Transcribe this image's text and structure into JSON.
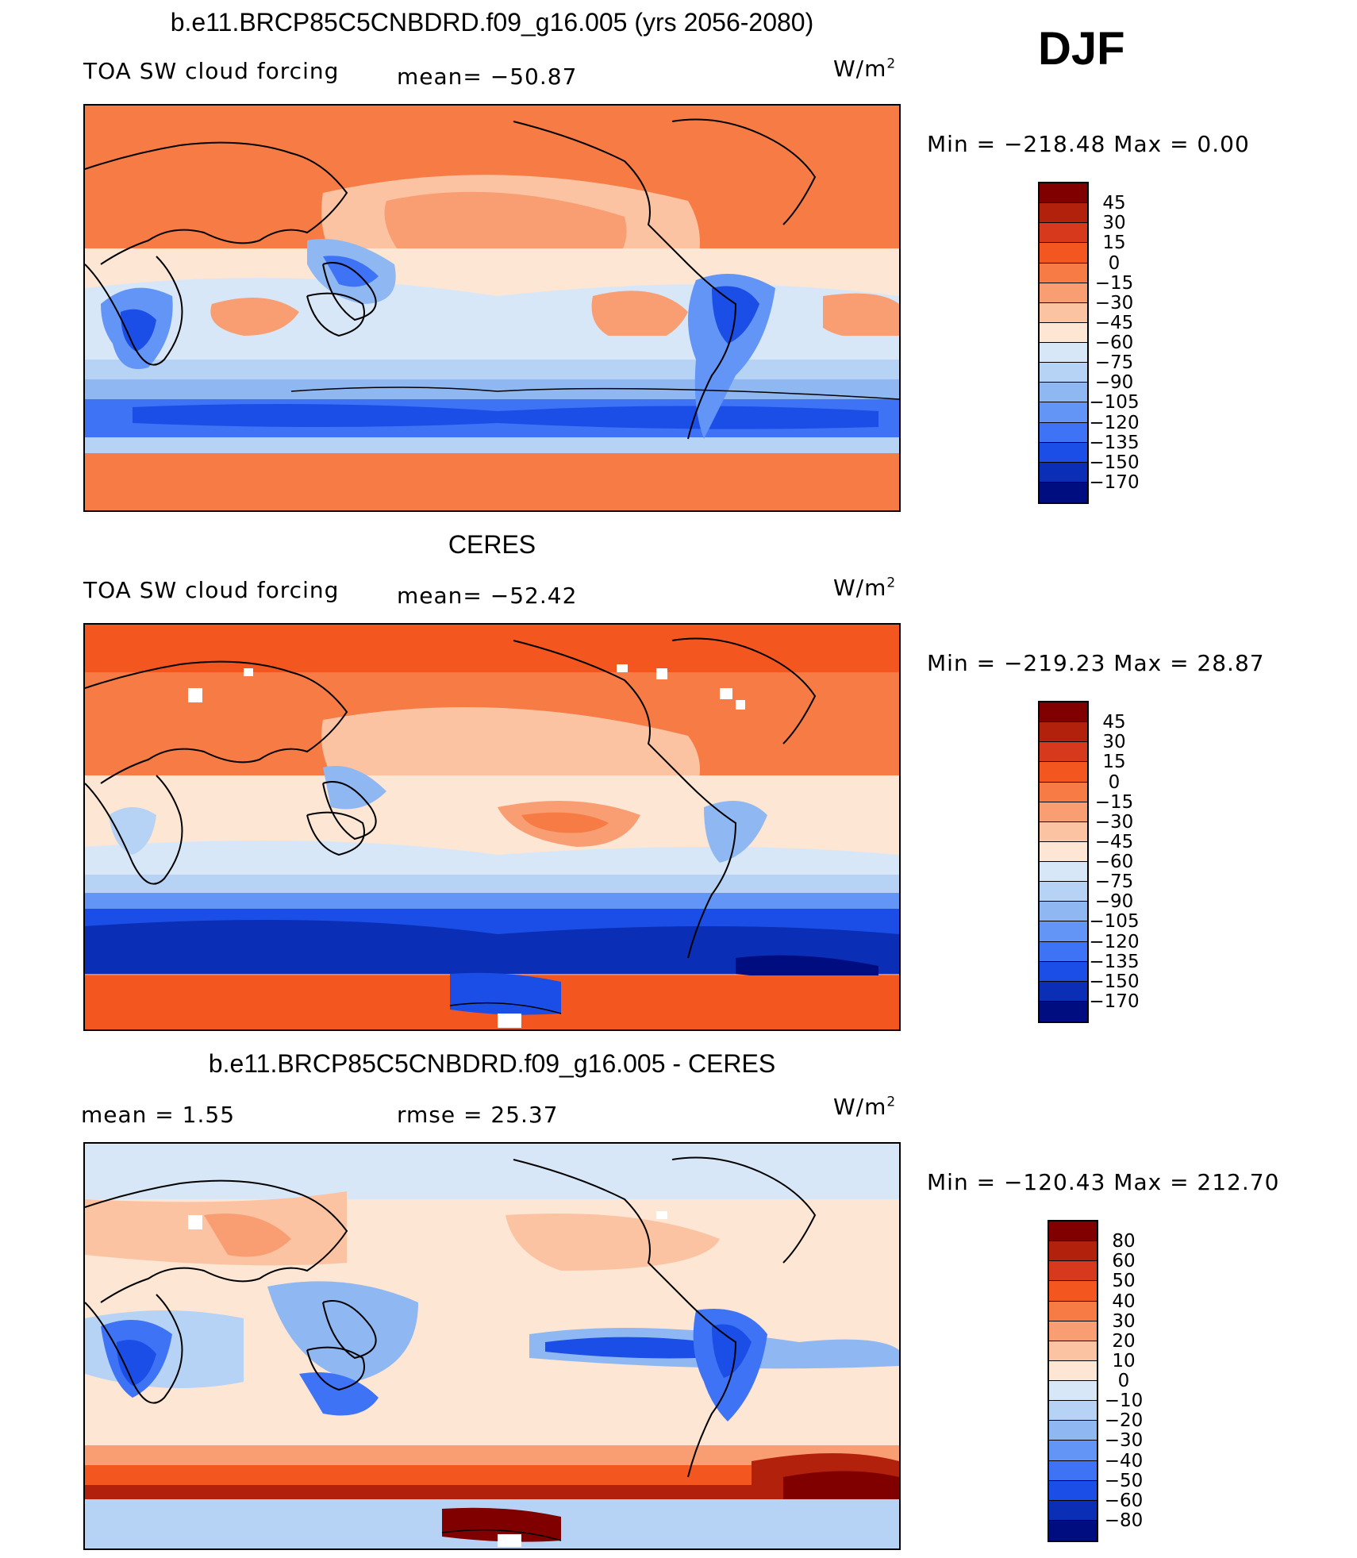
{
  "season": "DJF",
  "units": "W/m",
  "units_sup": "2",
  "panels": [
    {
      "title": "b.e11.BRCP85C5CNBDRD.f09_g16.005 (yrs 2056-2080)",
      "variable": "TOA SW cloud forcing",
      "stat1": "mean=  −50.87",
      "stat2": "",
      "minmax": "Min  =  −218.48  Max  =     0.00",
      "levels": [
        "45",
        "30",
        "15",
        "0",
        "−15",
        "−30",
        "−45",
        "−60",
        "−75",
        "−90",
        "−105",
        "−120",
        "−135",
        "−150",
        "−170"
      ],
      "colors": [
        "#800000",
        "#b2210c",
        "#d6391c",
        "#f4561f",
        "#f77b45",
        "#f99d72",
        "#fcc3a3",
        "#fde6d3",
        "#d8e7f8",
        "#b6d2f4",
        "#8fb8f3",
        "#6295f5",
        "#3d73f4",
        "#1b4ee6",
        "#0a2fb6",
        "#000d80"
      ]
    },
    {
      "title": "CERES",
      "variable": "TOA SW cloud forcing",
      "stat1": "mean=  −52.42",
      "stat2": "",
      "minmax": "Min  =  −219.23  Max  =    28.87",
      "levels": [
        "45",
        "30",
        "15",
        "0",
        "−15",
        "−30",
        "−45",
        "−60",
        "−75",
        "−90",
        "−105",
        "−120",
        "−135",
        "−150",
        "−170"
      ],
      "colors": [
        "#800000",
        "#b2210c",
        "#d6391c",
        "#f4561f",
        "#f77b45",
        "#f99d72",
        "#fcc3a3",
        "#fde6d3",
        "#d8e7f8",
        "#b6d2f4",
        "#8fb8f3",
        "#6295f5",
        "#3d73f4",
        "#1b4ee6",
        "#0a2fb6",
        "#000d80"
      ]
    },
    {
      "title": "b.e11.BRCP85C5CNBDRD.f09_g16.005 - CERES",
      "variable": "",
      "stat1": "mean  =     1.55",
      "stat2": "rmse  =    25.37",
      "minmax": "Min  =  −120.43  Max  =  212.70",
      "levels": [
        "80",
        "60",
        "50",
        "40",
        "30",
        "20",
        "10",
        "0",
        "−10",
        "−20",
        "−30",
        "−40",
        "−50",
        "−60",
        "−80"
      ],
      "colors": [
        "#800000",
        "#b2210c",
        "#d6391c",
        "#f4561f",
        "#f77b45",
        "#f99d72",
        "#fcc3a3",
        "#fde6d3",
        "#d8e7f8",
        "#b6d2f4",
        "#8fb8f3",
        "#6295f5",
        "#3d73f4",
        "#1b4ee6",
        "#0a2fb6",
        "#000d80"
      ]
    }
  ]
}
